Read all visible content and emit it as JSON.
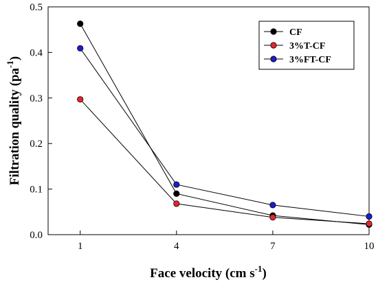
{
  "chart_data": {
    "type": "line",
    "title": "",
    "xlabel": {
      "main": "Face velocity (cm s",
      "sup": "-1",
      "end": ")"
    },
    "ylabel": {
      "main": "Filtration quality (pa",
      "sup": "-1",
      "end": ")"
    },
    "x": [
      1,
      4,
      7,
      10
    ],
    "x_ticks": [
      "1",
      "4",
      "7",
      "10"
    ],
    "xlim": [
      0,
      10
    ],
    "ylim": [
      0.0,
      0.5
    ],
    "y_ticks": [
      "0.0",
      "0.1",
      "0.2",
      "0.3",
      "0.4",
      "0.5"
    ],
    "grid": false,
    "legend_position": "top-right",
    "series": [
      {
        "name": "CF",
        "color": "#000000",
        "values": [
          0.463,
          0.09,
          0.042,
          0.022
        ]
      },
      {
        "name": "3%T-CF",
        "color": "#e8252a",
        "values": [
          0.297,
          0.068,
          0.038,
          0.024
        ]
      },
      {
        "name": "3%FT-CF",
        "color": "#1c1ccf",
        "values": [
          0.409,
          0.11,
          0.065,
          0.04
        ]
      }
    ]
  }
}
